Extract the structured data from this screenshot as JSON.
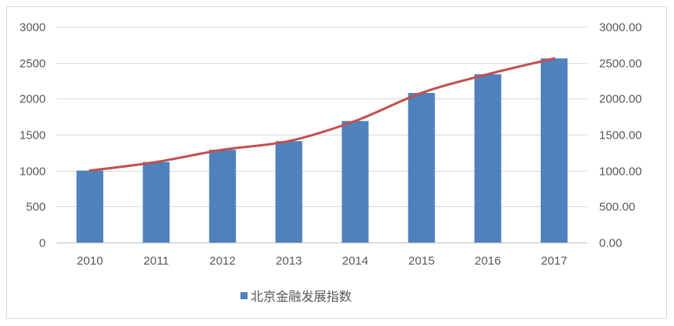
{
  "chart_data": {
    "type": "bar",
    "categories": [
      "2010",
      "2011",
      "2012",
      "2013",
      "2014",
      "2015",
      "2016",
      "2017"
    ],
    "series": [
      {
        "name": "北京金融发展指数",
        "type": "bar",
        "axis": "left",
        "color": "#4F81BD",
        "values": [
          1000,
          1120,
          1290,
          1410,
          1690,
          2080,
          2340,
          2560
        ]
      },
      {
        "type": "line",
        "axis": "right",
        "smooth": true,
        "color": "#C0504D",
        "values": [
          1000,
          1120,
          1290,
          1410,
          1690,
          2080,
          2340,
          2560
        ]
      }
    ],
    "y_left": {
      "ticks": [
        "0",
        "500",
        "1000",
        "1500",
        "2000",
        "2500",
        "3000"
      ],
      "ylim": [
        0,
        3000
      ]
    },
    "y_right": {
      "ticks": [
        "0.00",
        "500.00",
        "1000.00",
        "1500.00",
        "2000.00",
        "2500.00",
        "3000.00"
      ],
      "ylim": [
        0,
        3000
      ]
    },
    "grid": true,
    "legend": {
      "position": "bottom"
    }
  }
}
